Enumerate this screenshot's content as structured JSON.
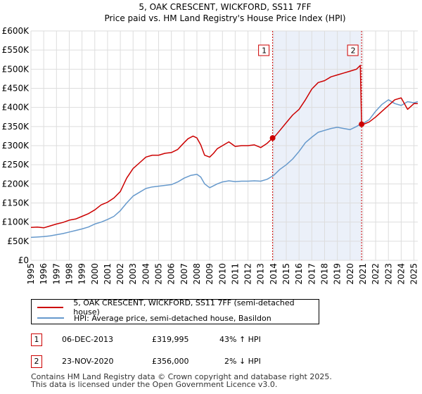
{
  "chart_data": {
    "type": "line",
    "title": "5, OAK CRESCENT, WICKFORD, SS11 7FF",
    "subtitle": "Price paid vs. HM Land Registry's House Price Index (HPI)",
    "xlim": [
      1995,
      2025.3
    ],
    "ylim": [
      0,
      600000
    ],
    "x_ticks": [
      "1995",
      "1996",
      "1997",
      "1998",
      "1999",
      "2000",
      "2001",
      "2002",
      "2003",
      "2004",
      "2005",
      "2006",
      "2007",
      "2008",
      "2009",
      "2010",
      "2011",
      "2012",
      "2013",
      "2014",
      "2015",
      "2016",
      "2017",
      "2018",
      "2019",
      "2020",
      "2021",
      "2022",
      "2023",
      "2024",
      "2025"
    ],
    "y_ticks": [
      {
        "value": 0,
        "label": "£0"
      },
      {
        "value": 50000,
        "label": "£50K"
      },
      {
        "value": 100000,
        "label": "£100K"
      },
      {
        "value": 150000,
        "label": "£150K"
      },
      {
        "value": 200000,
        "label": "£200K"
      },
      {
        "value": 250000,
        "label": "£250K"
      },
      {
        "value": 300000,
        "label": "£300K"
      },
      {
        "value": 350000,
        "label": "£350K"
      },
      {
        "value": 400000,
        "label": "£400K"
      },
      {
        "value": 450000,
        "label": "£450K"
      },
      {
        "value": 500000,
        "label": "£500K"
      },
      {
        "value": 550000,
        "label": "£550K"
      },
      {
        "value": 600000,
        "label": "£600K"
      }
    ],
    "grid": true,
    "shaded_region": [
      2013.93,
      2020.9
    ],
    "series": [
      {
        "name": "5, OAK CRESCENT, WICKFORD, SS11 7FF (semi-detached house)",
        "color": "#cc0000",
        "x": [
          1995,
          1995.5,
          1996,
          1996.5,
          1997,
          1997.5,
          1998,
          1998.5,
          1999,
          1999.5,
          2000,
          2000.5,
          2001,
          2001.5,
          2002,
          2002.5,
          2003,
          2003.5,
          2004,
          2004.5,
          2005,
          2005.5,
          2006,
          2006.5,
          2007,
          2007.3,
          2007.7,
          2008,
          2008.3,
          2008.6,
          2009,
          2009.3,
          2009.6,
          2010,
          2010.5,
          2011,
          2011.5,
          2012,
          2012.5,
          2013,
          2013.5,
          2013.93,
          2014,
          2014.5,
          2015,
          2015.5,
          2016,
          2016.5,
          2017,
          2017.5,
          2018,
          2018.5,
          2019,
          2019.5,
          2020,
          2020.5,
          2020.8,
          2020.9,
          2021,
          2021.5,
          2022,
          2022.5,
          2023,
          2023.5,
          2024,
          2024.5,
          2025,
          2025.3
        ],
        "y": [
          86000,
          87000,
          85000,
          90000,
          95000,
          99000,
          105000,
          108000,
          115000,
          122000,
          132000,
          145000,
          152000,
          163000,
          180000,
          215000,
          240000,
          255000,
          270000,
          275000,
          275000,
          280000,
          282000,
          290000,
          308000,
          318000,
          325000,
          320000,
          302000,
          275000,
          270000,
          280000,
          292000,
          300000,
          310000,
          298000,
          300000,
          300000,
          302000,
          295000,
          306000,
          319995,
          320000,
          340000,
          360000,
          380000,
          395000,
          420000,
          448000,
          465000,
          470000,
          480000,
          485000,
          490000,
          495000,
          500000,
          510000,
          356000,
          355000,
          362000,
          375000,
          390000,
          405000,
          420000,
          425000,
          395000,
          410000,
          410000
        ]
      },
      {
        "name": "HPI: Average price, semi-detached house, Basildon",
        "color": "#6699cc",
        "x": [
          1995,
          1995.5,
          1996,
          1996.5,
          1997,
          1997.5,
          1998,
          1998.5,
          1999,
          1999.5,
          2000,
          2000.5,
          2001,
          2001.5,
          2002,
          2002.5,
          2003,
          2003.5,
          2004,
          2004.5,
          2005,
          2005.5,
          2006,
          2006.5,
          2007,
          2007.5,
          2008,
          2008.3,
          2008.6,
          2009,
          2009.3,
          2009.6,
          2010,
          2010.5,
          2011,
          2011.5,
          2012,
          2012.5,
          2013,
          2013.5,
          2014,
          2014.5,
          2015,
          2015.5,
          2016,
          2016.5,
          2017,
          2017.5,
          2018,
          2018.5,
          2019,
          2019.5,
          2020,
          2020.5,
          2020.9,
          2021,
          2021.5,
          2022,
          2022.5,
          2023,
          2023.5,
          2024,
          2024.5,
          2025,
          2025.3
        ],
        "y": [
          60000,
          61000,
          62000,
          64000,
          67000,
          70000,
          74000,
          78000,
          82000,
          87000,
          95000,
          100000,
          107000,
          115000,
          130000,
          150000,
          168000,
          178000,
          188000,
          192000,
          194000,
          196000,
          198000,
          205000,
          215000,
          222000,
          225000,
          218000,
          200000,
          190000,
          195000,
          200000,
          205000,
          208000,
          206000,
          207000,
          207000,
          208000,
          207000,
          212000,
          222000,
          238000,
          250000,
          265000,
          285000,
          308000,
          322000,
          335000,
          340000,
          345000,
          348000,
          345000,
          342000,
          350000,
          358000,
          358000,
          368000,
          390000,
          408000,
          420000,
          410000,
          405000,
          415000,
          412000,
          415000
        ]
      }
    ],
    "markers": [
      {
        "label": "1",
        "x": 2013.93,
        "y": 319995
      },
      {
        "label": "2",
        "x": 2020.9,
        "y": 356000
      }
    ]
  },
  "legend": {
    "items": [
      {
        "label": "5, OAK CRESCENT, WICKFORD, SS11 7FF (semi-detached house)",
        "color": "#cc0000"
      },
      {
        "label": "HPI: Average price, semi-detached house, Basildon",
        "color": "#6699cc"
      }
    ]
  },
  "transactions": [
    {
      "num": "1",
      "date": "06-DEC-2013",
      "price": "£319,995",
      "hpi": "43% ↑ HPI"
    },
    {
      "num": "2",
      "date": "23-NOV-2020",
      "price": "£356,000",
      "hpi": "2% ↓ HPI"
    }
  ],
  "footer": {
    "line1": "Contains HM Land Registry data © Crown copyright and database right 2025.",
    "line2": "This data is licensed under the Open Government Licence v3.0."
  }
}
